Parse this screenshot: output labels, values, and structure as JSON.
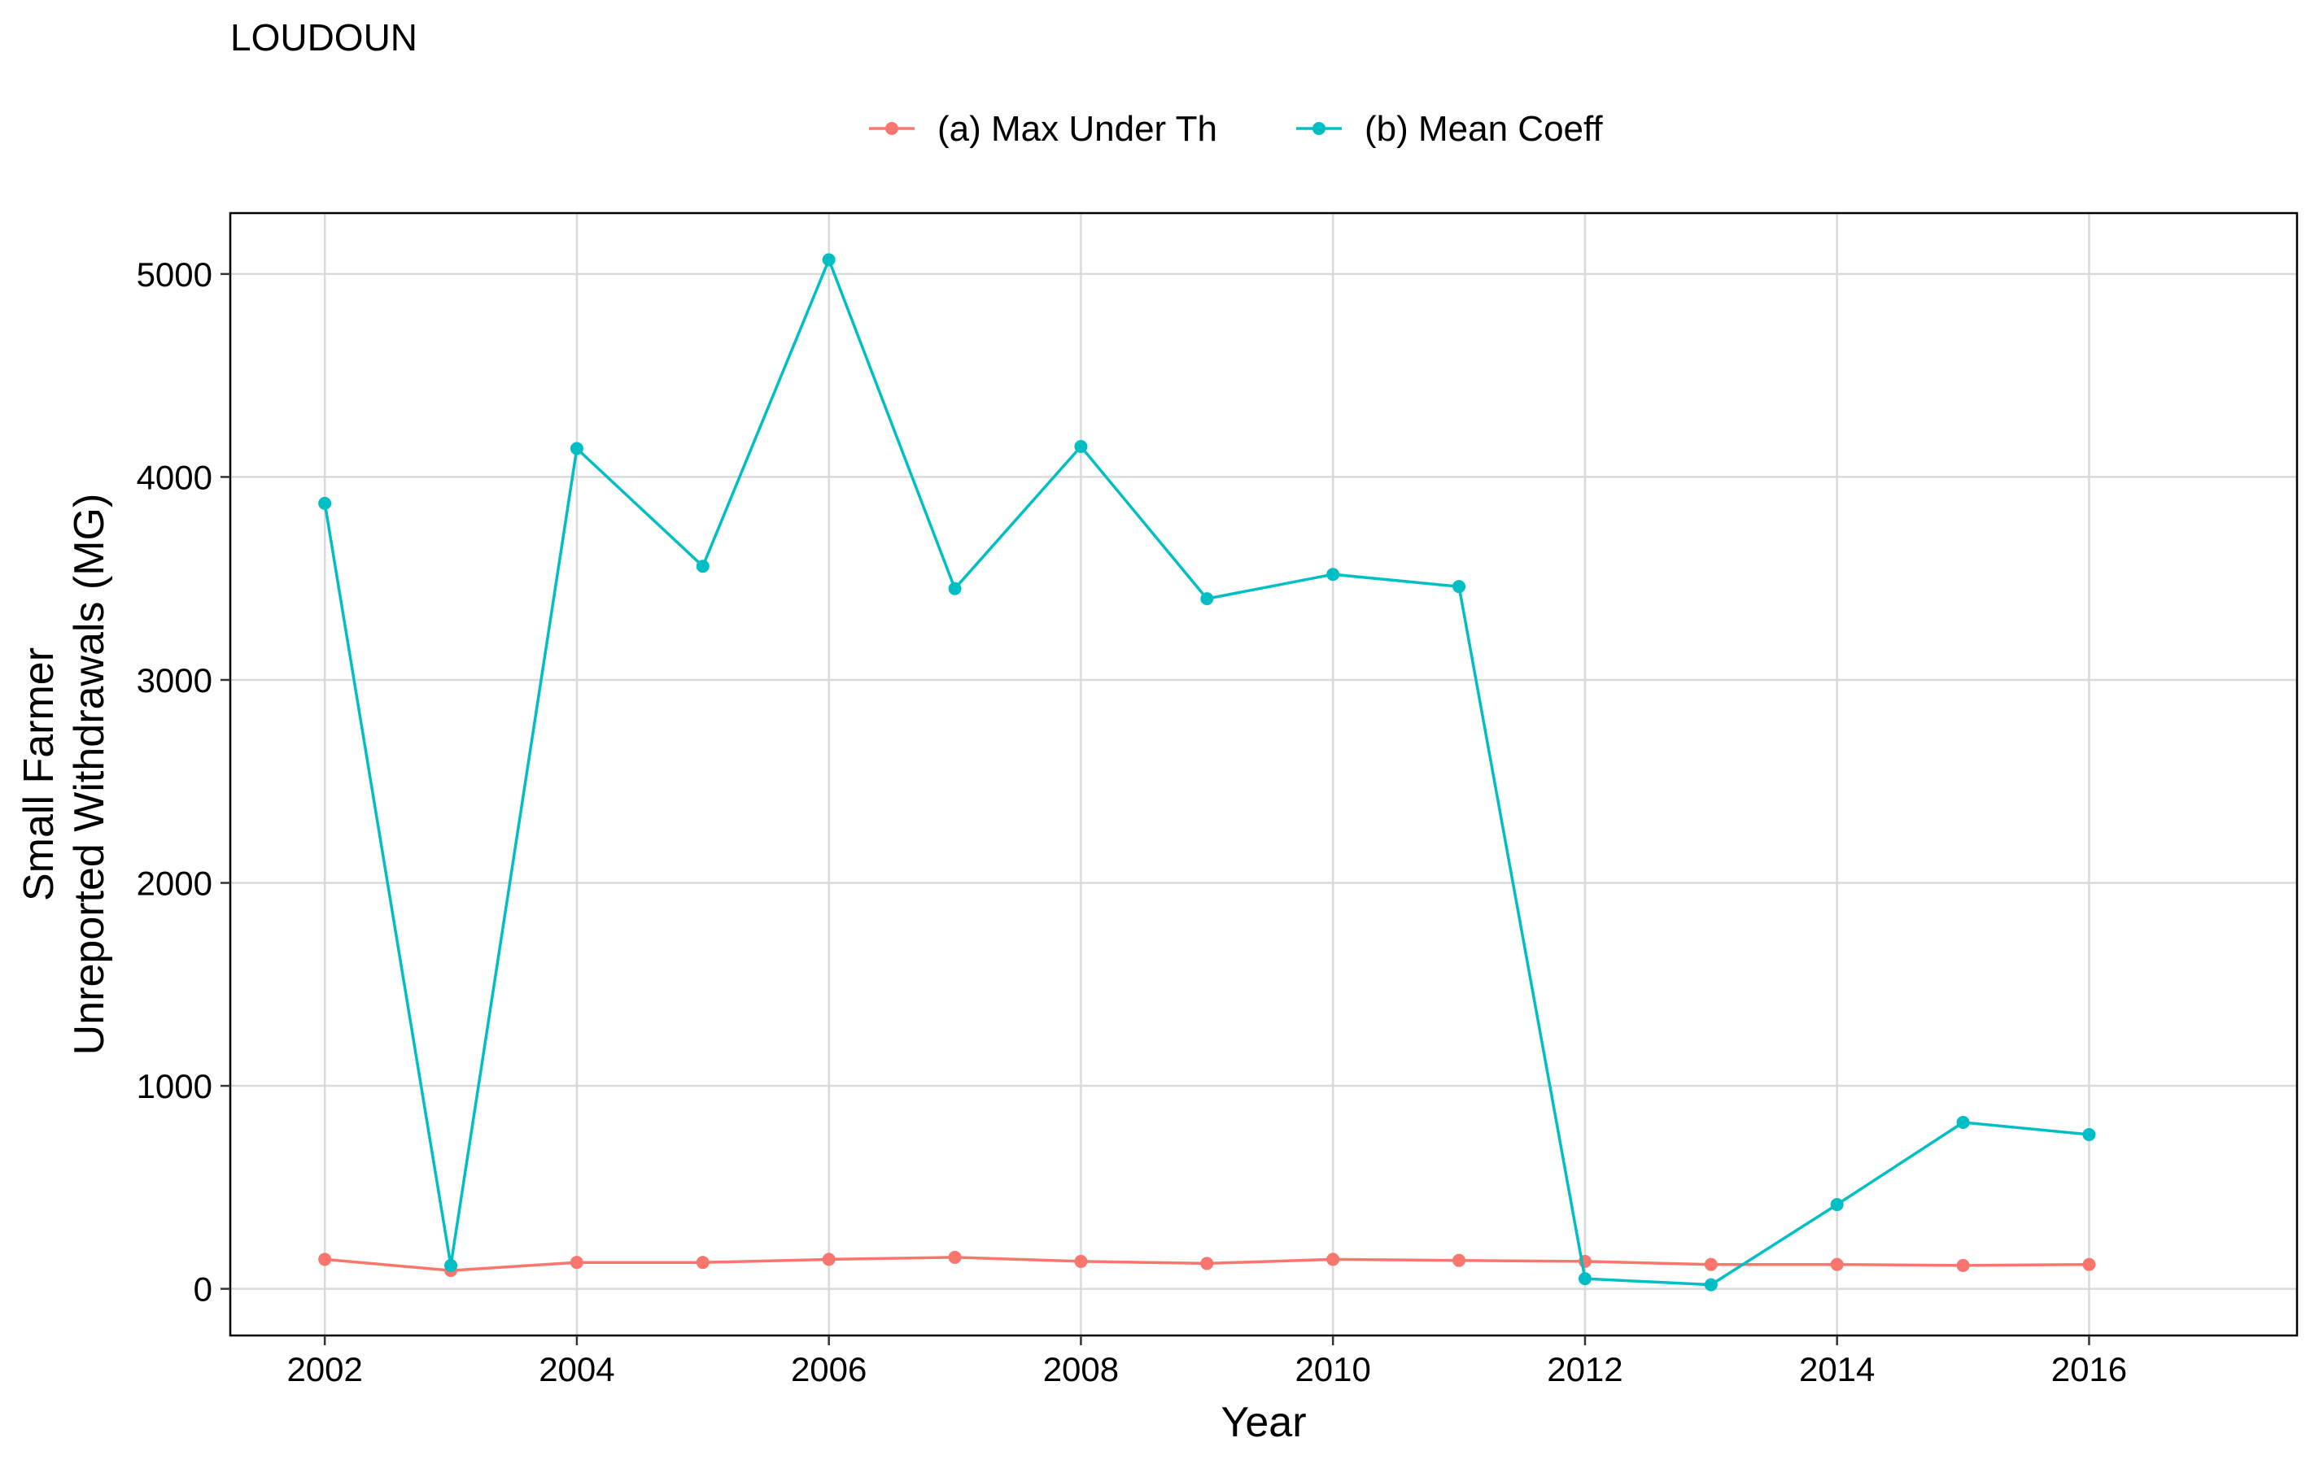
{
  "chart_data": {
    "type": "line",
    "title": "LOUDOUN",
    "xlabel": "Year",
    "ylabel_lines": [
      "Small Farmer",
      "Unreported Withdrawals (MG)"
    ],
    "xlim": [
      2001.25,
      2017.65
    ],
    "ylim": [
      -230,
      5300
    ],
    "x_ticks": [
      2002,
      2004,
      2006,
      2008,
      2010,
      2012,
      2014,
      2016
    ],
    "x_tick_labels": [
      "2002",
      "2004",
      "2006",
      "2008",
      "2010",
      "2012",
      "2014",
      "2016"
    ],
    "y_ticks": [
      0,
      1000,
      2000,
      3000,
      4000,
      5000
    ],
    "y_tick_labels": [
      "0",
      "1000",
      "2000",
      "3000",
      "4000",
      "5000"
    ],
    "x": [
      2002,
      2003,
      2004,
      2005,
      2006,
      2007,
      2008,
      2009,
      2010,
      2011,
      2012,
      2013,
      2014,
      2015,
      2016
    ],
    "grid": true,
    "legend_position": "top",
    "series": [
      {
        "name": "(a) Max Under Th",
        "color": "#F8766D",
        "values": [
          145,
          90,
          130,
          130,
          145,
          155,
          135,
          125,
          145,
          140,
          135,
          120,
          120,
          115,
          120
        ]
      },
      {
        "name": "(b) Mean Coeff",
        "color": "#00BFC4",
        "values": [
          3870,
          115,
          4140,
          3560,
          5070,
          3450,
          4150,
          3400,
          3520,
          3460,
          50,
          20,
          415,
          820,
          760
        ]
      }
    ]
  },
  "colors": {
    "grid": "#d9d9d9",
    "panel_border": "#000000",
    "background": "#ffffff"
  }
}
